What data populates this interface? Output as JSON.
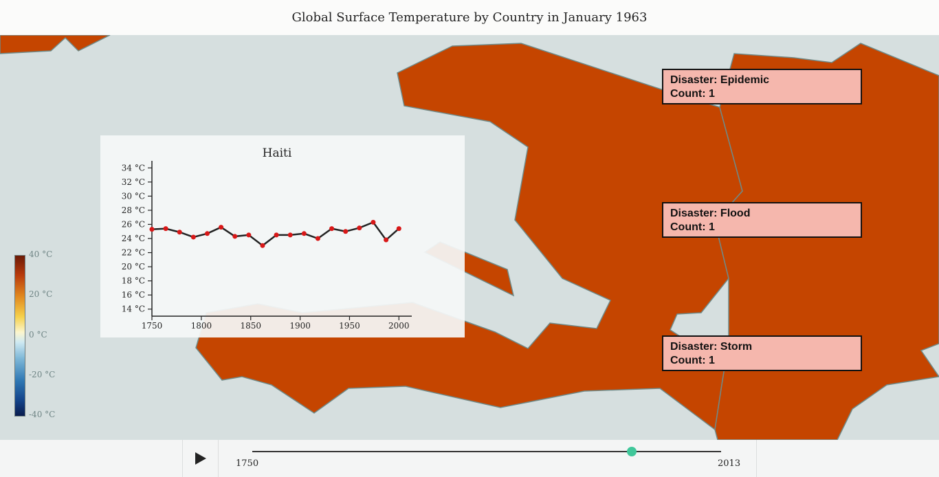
{
  "page": {
    "title": "Global Surface Temperature by Country in January 1963"
  },
  "legend": {
    "labels": [
      "40 °C",
      "20 °C",
      "0 °C",
      "-20 °C",
      "-40 °C"
    ]
  },
  "disasters": [
    {
      "line1": "Disaster: Epidemic",
      "line2": "Count: 1"
    },
    {
      "line1": "Disaster: Flood",
      "line2": "Count: 1"
    },
    {
      "line1": "Disaster: Storm",
      "line2": "Count: 1"
    }
  ],
  "timeline": {
    "start_label": "1750",
    "end_label": "2013",
    "min": 1750,
    "max": 2013,
    "value": 1963
  },
  "colors": {
    "country_fill": "#c54500",
    "sea": "#d6dfdf",
    "slider_handle": "#40c79a",
    "line_point": "#d81818"
  },
  "chart_data": {
    "type": "line",
    "title": "Haiti",
    "xlabel": "",
    "ylabel": "",
    "xlim": [
      1750,
      2013
    ],
    "ylim": [
      13,
      35
    ],
    "x_ticks": [
      "1750",
      "1800",
      "1850",
      "1900",
      "1950",
      "2000"
    ],
    "y_ticks": [
      "14 °C",
      "16 °C",
      "18 °C",
      "20 °C",
      "22 °C",
      "24 °C",
      "26 °C",
      "28 °C",
      "30 °C",
      "32 °C",
      "34 °C"
    ],
    "series": [
      {
        "x": [
          1750,
          1764,
          1778,
          1792,
          1806,
          1820,
          1834,
          1848,
          1862,
          1876,
          1890,
          1904,
          1918,
          1932,
          1946,
          1960,
          1974,
          1987,
          2000
        ],
        "values": [
          25.3,
          25.4,
          24.9,
          24.2,
          24.7,
          25.6,
          24.3,
          24.5,
          23.0,
          24.5,
          24.5,
          24.7,
          24.0,
          25.4,
          25.0,
          25.5,
          26.3,
          23.8,
          25.4
        ]
      }
    ]
  }
}
